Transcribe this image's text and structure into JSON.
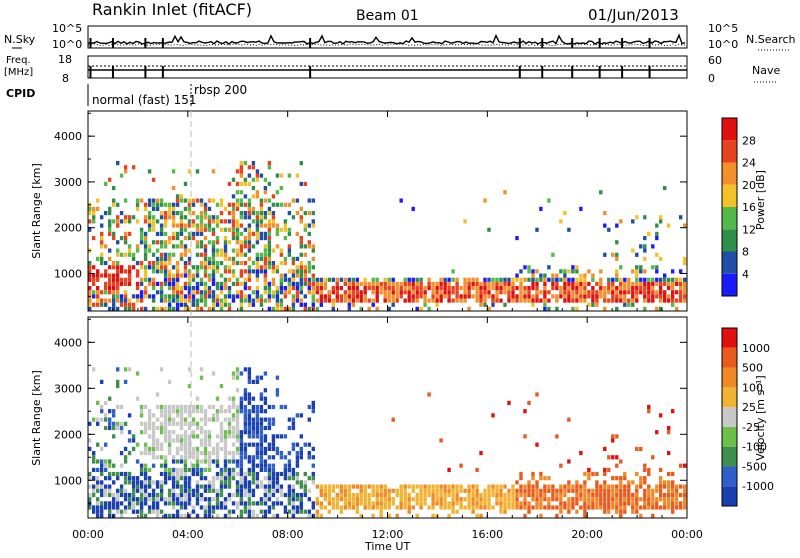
{
  "header": {
    "station": "Rankin Inlet (fitACF)",
    "beam": "Beam 01",
    "date": "01/Jun/2013"
  },
  "noise_panel": {
    "left_label": "N.Sky",
    "left_ticks": [
      "10^5",
      "10^0"
    ],
    "right_label": "N.Search",
    "right_ticks": [
      "10^5",
      "10^0"
    ]
  },
  "freq_panel": {
    "left_label_1": "Freq.",
    "left_label_2": "[MHz]",
    "left_ticks": [
      "18",
      "8"
    ],
    "right_label": "Nave",
    "right_ticks": [
      "60",
      "0"
    ]
  },
  "cpid_panel": {
    "label": "CPID",
    "mode_1": "normal (fast) 151",
    "mode_2": "rbsp 200"
  },
  "chart_data": [
    {
      "type": "heatmap",
      "title": "Power",
      "ylabel": "Slant Range [km]",
      "yticks": [
        "1000",
        "2000",
        "3000",
        "4000"
      ],
      "ylim": [
        180,
        4550
      ],
      "colorbar_label": "Power [dB]",
      "colorbar_ticks": [
        "4",
        "8",
        "12",
        "16",
        "20",
        "24",
        "28"
      ],
      "colors": [
        "#1a1aff",
        "#1e4ea6",
        "#2f8f4a",
        "#54b84a",
        "#f2c22b",
        "#f2902b",
        "#e8421e",
        "#e01010"
      ]
    },
    {
      "type": "heatmap",
      "title": "Velocity",
      "ylabel": "Slant Range [km]",
      "yticks": [
        "1000",
        "2000",
        "3000",
        "4000"
      ],
      "ylim": [
        180,
        4550
      ],
      "colorbar_label": "Velocity [m s⁻¹]",
      "colorbar_ticks": [
        "1000",
        "500",
        "100",
        "25",
        "-25",
        "-100",
        "-500",
        "-1000"
      ],
      "colors": [
        "#1a3fb0",
        "#2f5fc8",
        "#3f8f4f",
        "#6cc04a",
        "#c8c8c8",
        "#f0b432",
        "#f08a28",
        "#e85a1e",
        "#e01010"
      ]
    }
  ],
  "x_axis": {
    "ticks": [
      "00:00",
      "04:00",
      "08:00",
      "12:00",
      "16:00",
      "20:00",
      "00:00"
    ],
    "label": "Time UT"
  }
}
